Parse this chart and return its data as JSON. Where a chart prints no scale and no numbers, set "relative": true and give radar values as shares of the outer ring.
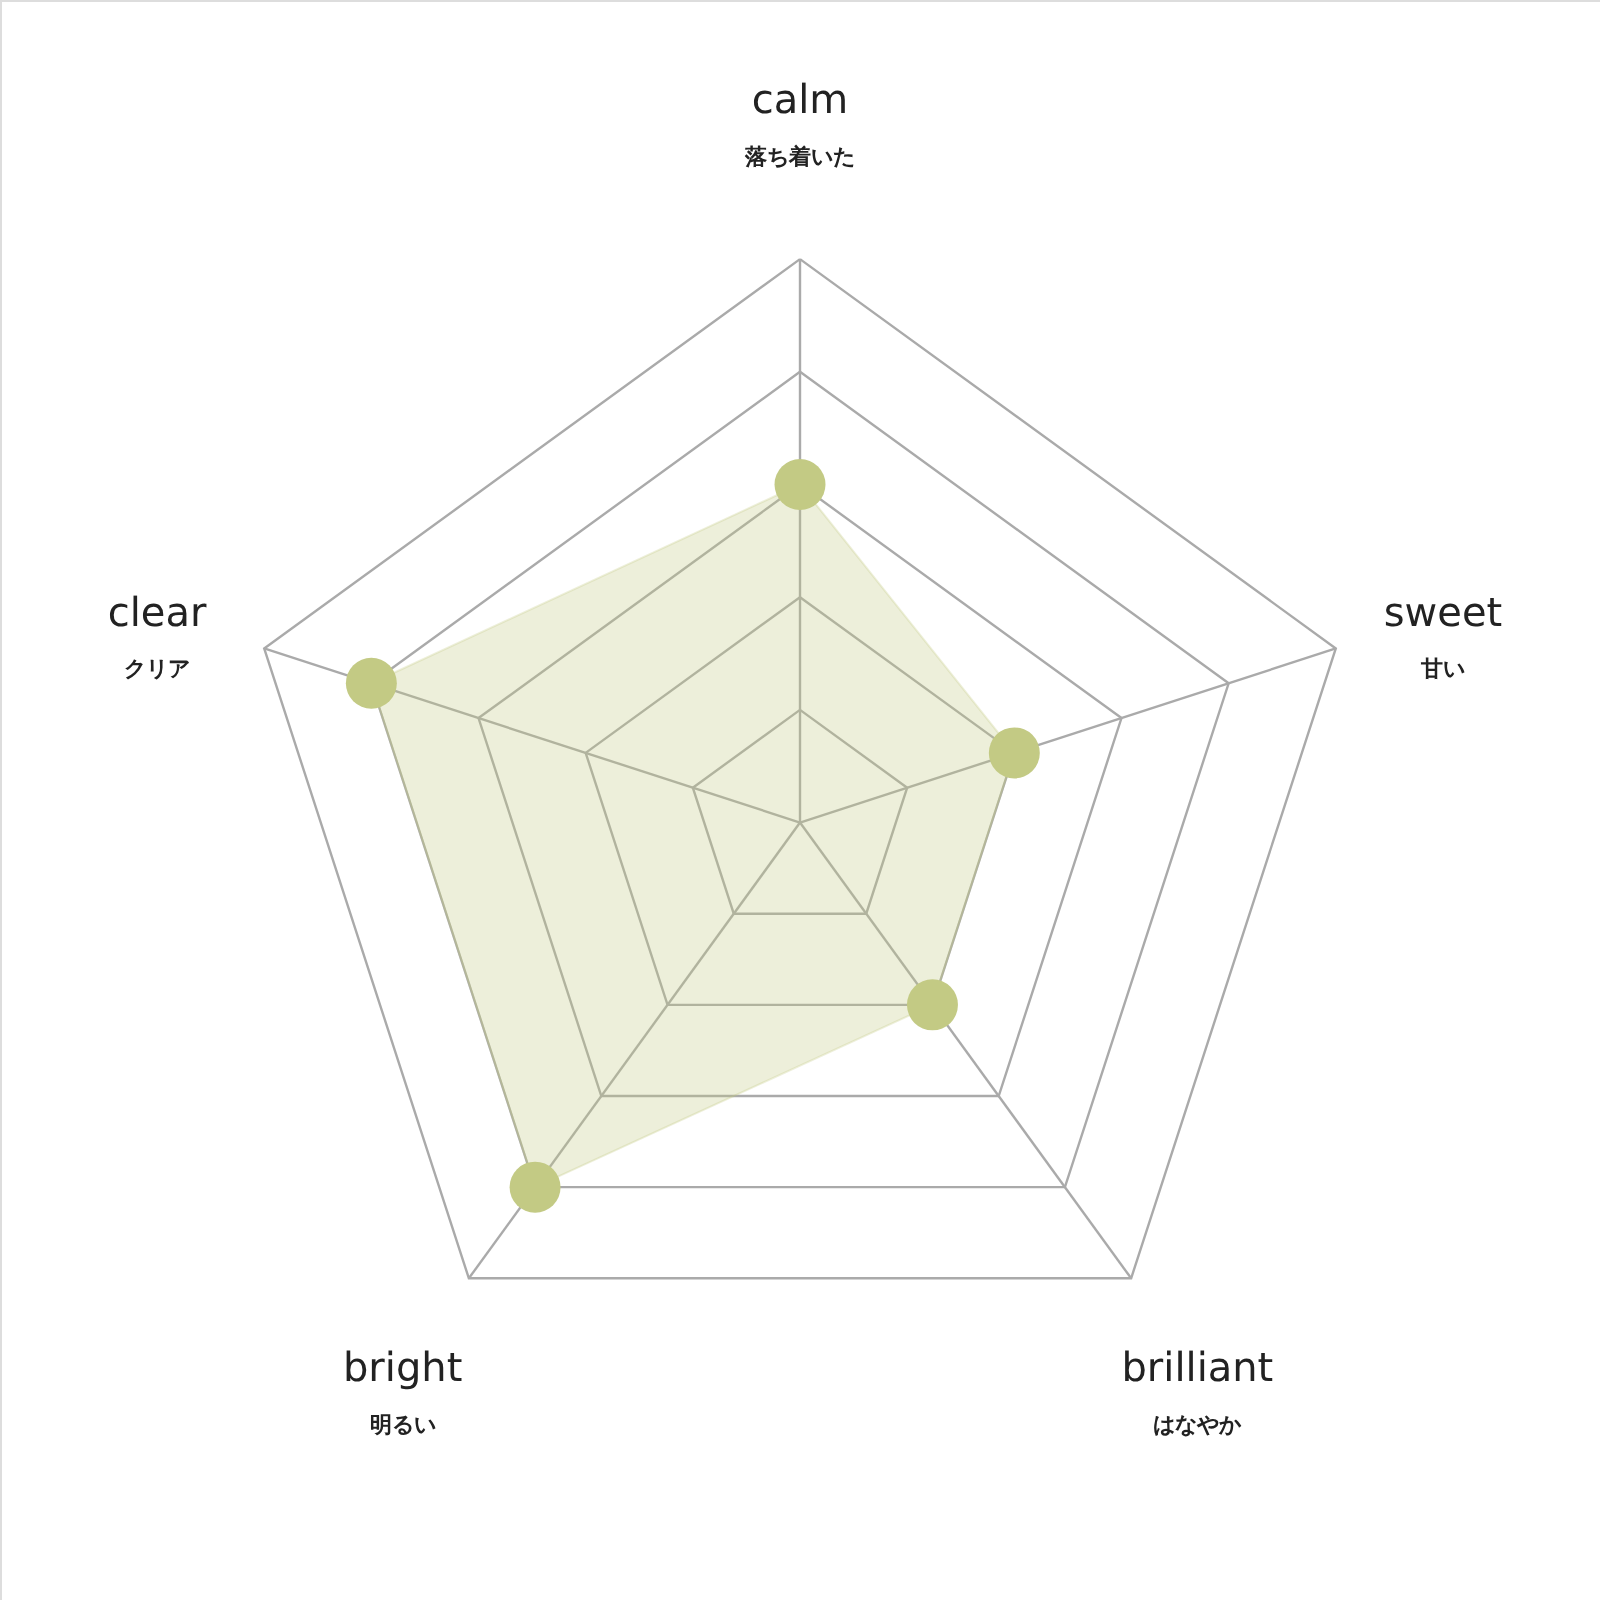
{
  "chart_data": {
    "type": "radar",
    "relative": true,
    "categories": [
      "calm",
      "sweet",
      "brilliant",
      "bright",
      "clear"
    ],
    "annotations": [
      "落ち着いた",
      "甘い",
      "はなやか",
      "明るい",
      "クリア"
    ],
    "series": [
      {
        "color": "#c3ca84",
        "values": [
          0.6,
          0.4,
          0.4,
          0.8,
          0.8
        ]
      }
    ],
    "marker": "circle",
    "grid": true
  }
}
